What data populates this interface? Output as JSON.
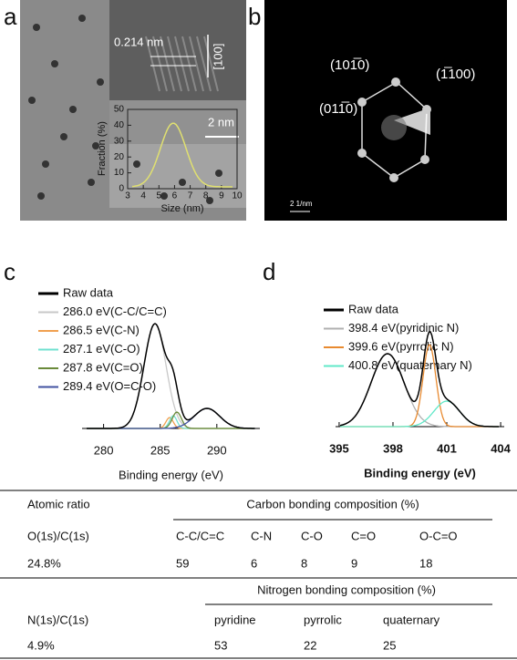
{
  "panels": {
    "a": {
      "label": "a",
      "fringe": "0.214 nm",
      "direction": "[100]",
      "scale_bar": "2 nm",
      "histogram": {
        "ylabel": "Fraction (%)",
        "xlabel": "Size (nm)",
        "xlim": [
          3,
          10
        ],
        "ylim": [
          0,
          50
        ],
        "xticks": [
          3,
          4,
          5,
          6,
          7,
          8,
          9,
          10
        ],
        "yticks": [
          0,
          10,
          20,
          30,
          40,
          50
        ]
      }
    },
    "b": {
      "label": "b",
      "spots": [
        "(101̅0)",
        "(1̅100)",
        "(011̅0)"
      ],
      "scale_bar": "2 1/nm"
    },
    "c": {
      "label": "c",
      "xlabel": "Binding energy (eV)",
      "xlim": [
        278.1,
        293.8
      ],
      "xticks": [
        280,
        285,
        290
      ],
      "legend": [
        {
          "name": "Raw data",
          "color": "#000000"
        },
        {
          "name": "286.0 eV(C-C/C=C)",
          "color": "#c8c8c8"
        },
        {
          "name": "286.5 eV(C-N)",
          "color": "#f0a050"
        },
        {
          "name": "287.1 eV(C-O)",
          "color": "#70e0d0"
        },
        {
          "name": "287.8 eV(C=O)",
          "color": "#6a8a3a"
        },
        {
          "name": "289.4 eV(O=C-O)",
          "color": "#4050a0"
        }
      ]
    },
    "d": {
      "label": "d",
      "xlabel": "Binding energy (eV)",
      "xlim": [
        394.8,
        404.2
      ],
      "xticks": [
        395,
        398,
        401,
        404
      ],
      "legend": [
        {
          "name": "Raw data",
          "color": "#000000"
        },
        {
          "name": "398.4 eV(pyridinic N)",
          "color": "#b0b0b0"
        },
        {
          "name": "399.6 eV(pyrrolic N)",
          "color": "#e88a30"
        },
        {
          "name": "400.8 eV(quaternary N)",
          "color": "#60e8c8"
        }
      ]
    }
  },
  "table": {
    "atomic_ratio": "Atomic ratio",
    "carbon": {
      "header": "Carbon bonding composition (%)",
      "ratio_label": "O(1s)/C(1s)",
      "columns": [
        "C-C/C=C",
        "C-N",
        "C-O",
        "C=O",
        "O-C=O"
      ],
      "ratio": "24.8%",
      "values": [
        59,
        6,
        8,
        9,
        18
      ]
    },
    "nitrogen": {
      "header": "Nitrogen bonding composition (%)",
      "ratio_label": "N(1s)/C(1s)",
      "columns": [
        "pyridine",
        "pyrrolic",
        "quaternary"
      ],
      "ratio": "4.9%",
      "values": [
        53,
        22,
        25
      ]
    }
  }
}
